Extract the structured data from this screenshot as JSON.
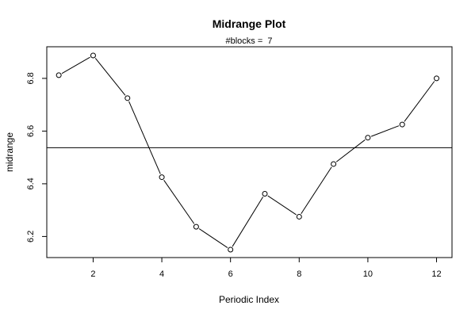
{
  "chart_data": {
    "type": "line",
    "title": "Midrange Plot",
    "subtitle": "#blocks =  7",
    "xlabel": "Periodic Index",
    "ylabel": "midrange",
    "xlim": [
      0.65,
      12.45
    ],
    "ylim": [
      6.12,
      6.92
    ],
    "x_ticks": [
      2,
      4,
      6,
      8,
      10,
      12
    ],
    "y_ticks": [
      6.2,
      6.4,
      6.6,
      6.8
    ],
    "x": [
      1,
      2,
      3,
      4,
      5,
      6,
      7,
      8,
      9,
      10,
      11,
      12
    ],
    "values": [
      6.812,
      6.887,
      6.725,
      6.425,
      6.237,
      6.15,
      6.362,
      6.275,
      6.475,
      6.575,
      6.625,
      6.8
    ],
    "reference_line": 6.537,
    "line_color": "#000000",
    "marker": "open-circle",
    "grid": false,
    "legend": "none"
  }
}
